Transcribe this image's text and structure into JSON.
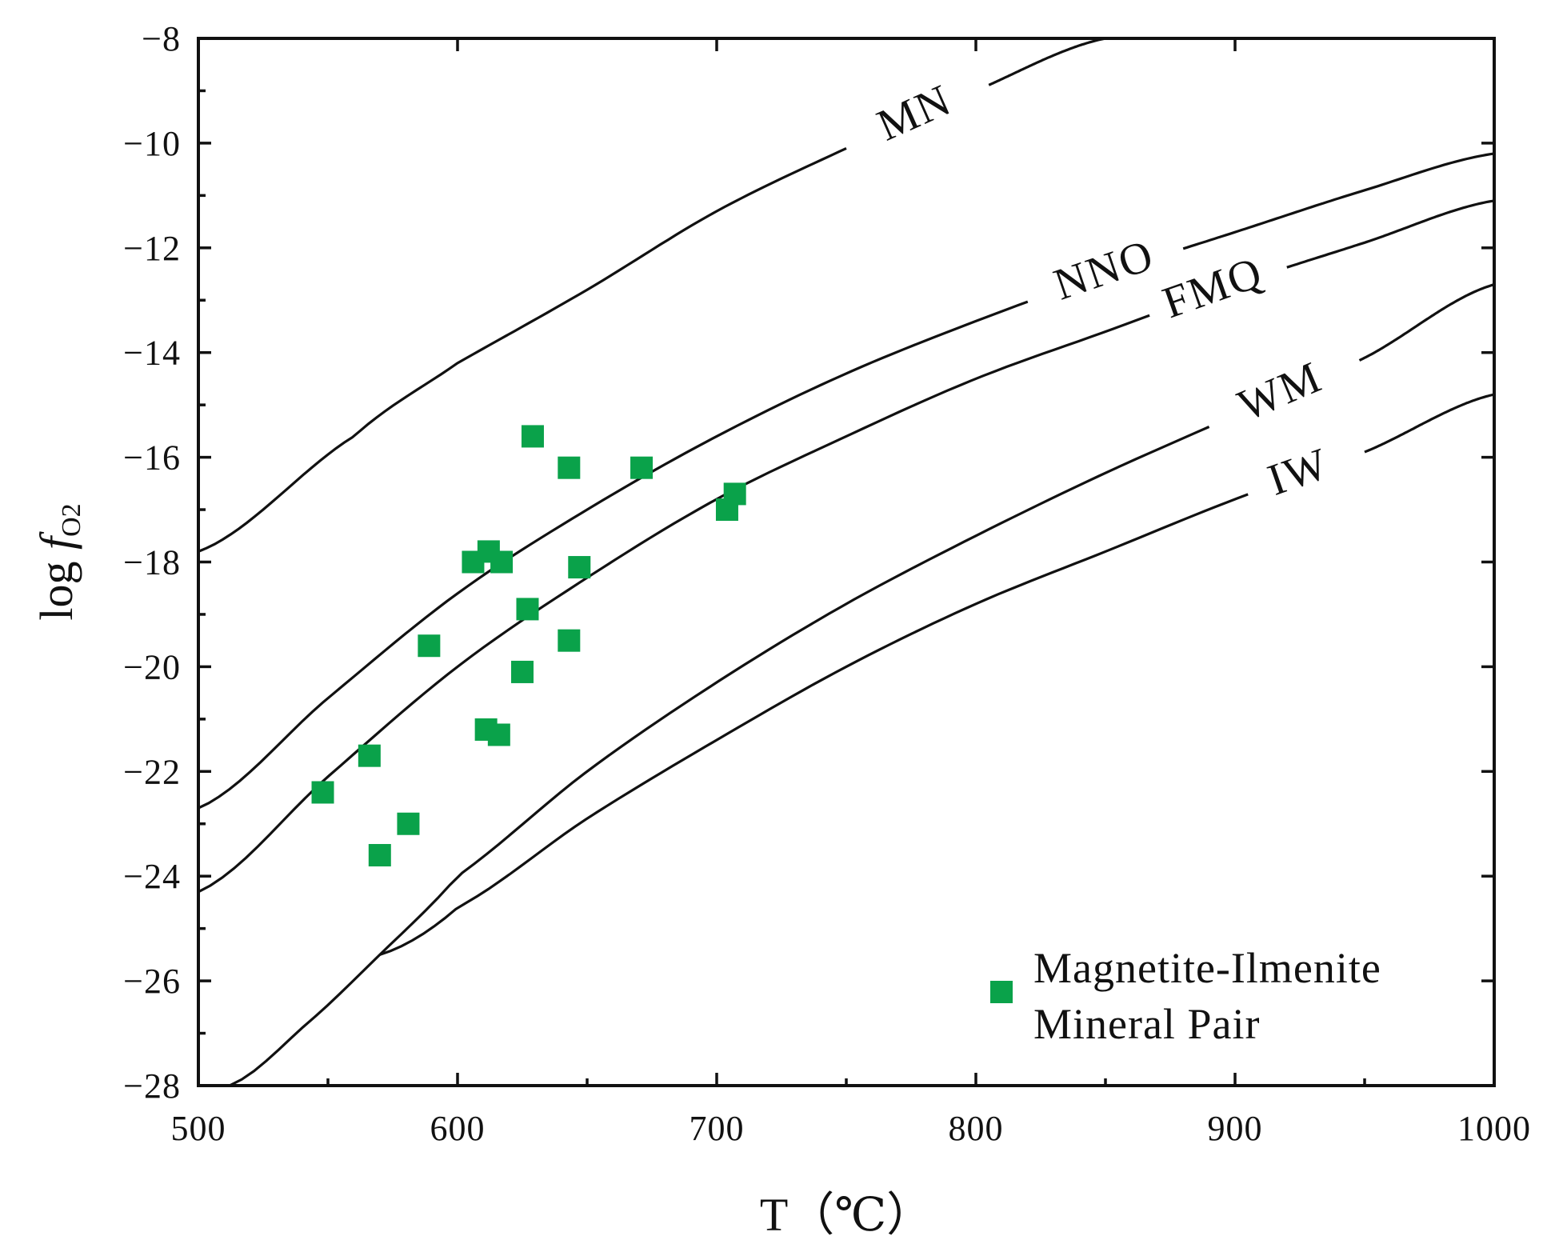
{
  "chart_data": {
    "type": "scatter",
    "title": "",
    "xlabel": "T（℃）",
    "ylabel_main": "log ",
    "ylabel_italic": "f",
    "ylabel_sub": "O2",
    "xlim": [
      500,
      1000
    ],
    "ylim": [
      -28,
      -8
    ],
    "x_major_ticks": [
      500,
      600,
      700,
      800,
      900,
      1000
    ],
    "x_tick_labels": [
      "500",
      "600",
      "700",
      "800",
      "900",
      "1000"
    ],
    "x_minor_step": 50,
    "y_major_ticks": [
      -28,
      -26,
      -24,
      -22,
      -20,
      -18,
      -16,
      -14,
      -12,
      -10,
      -8
    ],
    "y_tick_labels": [
      "−28",
      "−26",
      "−24",
      "−22",
      "−20",
      "−18",
      "−16",
      "−14",
      "−12",
      "−10",
      "−8"
    ],
    "y_minor_step": 1,
    "grid": false,
    "buffers": [
      {
        "name": "MN",
        "points": [
          [
            500,
            -17.8
          ],
          [
            560,
            -15.6
          ],
          [
            600,
            -14.2
          ],
          [
            650,
            -12.8
          ],
          [
            700,
            -11.3
          ],
          [
            750,
            -10.1
          ],
          [
            800,
            -9.0
          ],
          [
            850,
            -8.0
          ]
        ],
        "label_at": 777,
        "label_gap": [
          750,
          805
        ]
      },
      {
        "name": "NNO",
        "points": [
          [
            500,
            -22.7
          ],
          [
            550,
            -20.6
          ],
          [
            600,
            -18.6
          ],
          [
            650,
            -17.0
          ],
          [
            700,
            -15.6
          ],
          [
            750,
            -14.4
          ],
          [
            800,
            -13.4
          ],
          [
            850,
            -12.5
          ],
          [
            900,
            -11.7
          ],
          [
            950,
            -10.9
          ],
          [
            1000,
            -10.2
          ]
        ],
        "label_at": 850,
        "label_gap": [
          820,
          880
        ]
      },
      {
        "name": "FMQ",
        "points": [
          [
            500,
            -24.3
          ],
          [
            550,
            -22.1
          ],
          [
            600,
            -20.0
          ],
          [
            650,
            -18.3
          ],
          [
            700,
            -16.8
          ],
          [
            750,
            -15.6
          ],
          [
            800,
            -14.5
          ],
          [
            850,
            -13.6
          ],
          [
            900,
            -12.7
          ],
          [
            950,
            -11.9
          ],
          [
            1000,
            -11.1
          ]
        ],
        "label_at": 892,
        "label_gap": [
          867,
          920
        ]
      },
      {
        "name": "WM",
        "points": [
          [
            512,
            -28.0
          ],
          [
            540,
            -26.9
          ],
          [
            570,
            -25.5
          ],
          [
            600,
            -24.0
          ],
          [
            650,
            -22.0
          ],
          [
            700,
            -20.3
          ],
          [
            750,
            -18.8
          ],
          [
            800,
            -17.5
          ],
          [
            850,
            -16.3
          ],
          [
            900,
            -15.2
          ],
          [
            950,
            -14.1
          ],
          [
            1000,
            -12.7
          ]
        ],
        "label_at": 918,
        "label_gap": [
          890,
          948
        ]
      },
      {
        "name": "IW",
        "points": [
          [
            570,
            -25.5
          ],
          [
            600,
            -24.6
          ],
          [
            650,
            -22.9
          ],
          [
            700,
            -21.4
          ],
          [
            750,
            -20.0
          ],
          [
            800,
            -18.8
          ],
          [
            850,
            -17.8
          ],
          [
            900,
            -16.8
          ],
          [
            950,
            -15.9
          ],
          [
            1000,
            -14.8
          ]
        ],
        "label_at": 925,
        "label_gap": [
          905,
          950
        ]
      }
    ],
    "series": [
      {
        "name": "Magnetite-Ilmenite Mineral Pair",
        "marker": "square",
        "color": "#0aa24a",
        "points": [
          [
            548,
            -22.4
          ],
          [
            566,
            -21.7
          ],
          [
            570,
            -23.6
          ],
          [
            581,
            -23.0
          ],
          [
            589,
            -19.6
          ],
          [
            606,
            -18.0
          ],
          [
            611,
            -21.2
          ],
          [
            612,
            -17.8
          ],
          [
            616,
            -21.3
          ],
          [
            617,
            -18.0
          ],
          [
            625,
            -20.1
          ],
          [
            627,
            -18.9
          ],
          [
            629,
            -15.6
          ],
          [
            643,
            -19.5
          ],
          [
            643,
            -16.2
          ],
          [
            647,
            -18.1
          ],
          [
            671,
            -16.2
          ],
          [
            704,
            -17.0
          ],
          [
            707,
            -16.7
          ]
        ]
      }
    ],
    "legend": {
      "position": "bottom-right",
      "line1": "Magnetite-Ilmenite",
      "line2": "Mineral Pair"
    }
  }
}
